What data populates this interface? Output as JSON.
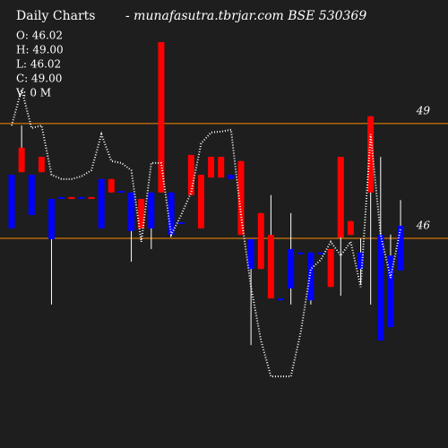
{
  "chart_data": {
    "type": "candlestick",
    "title": "Daily Charts",
    "subtitle": "-  munafasutra.tbrjar.com  BSE 530369",
    "info": [
      "O: 46.02",
      "H: 49.00",
      "L: 46.02",
      "C: 49.00",
      "V: 0  M"
    ],
    "open": [
      47.66,
      47.73,
      47.66,
      47.73,
      47.03,
      47.08,
      47.03,
      47.08,
      47.03,
      47.55,
      47.2,
      47.24,
      47.2,
      46.26,
      47.2,
      47.2,
      47.2,
      46.42,
      47.13,
      46.26,
      47.59,
      47.59,
      47.66,
      46.09,
      45.98,
      45.2,
      44.43,
      44.43,
      45.72,
      45.63,
      45.63,
      45.63,
      44.73,
      46.02,
      46.09,
      45.63,
      47.2,
      46.09,
      45.55,
      46.33
    ],
    "high": [
      47.66,
      48.95,
      47.66,
      48.13,
      47.03,
      47.08,
      47.08,
      47.08,
      47.08,
      47.55,
      47.55,
      47.24,
      47.2,
      47.03,
      47.2,
      51.13,
      47.2,
      46.42,
      48.18,
      47.66,
      48.13,
      48.13,
      47.66,
      48.02,
      45.98,
      46.66,
      47.13,
      44.43,
      46.66,
      45.63,
      45.63,
      45.63,
      45.72,
      48.13,
      46.45,
      46.0,
      49.19,
      48.13,
      46.1,
      47.0
    ],
    "low": [
      46.26,
      47.73,
      46.61,
      47.73,
      44.27,
      47.03,
      47.03,
      47.03,
      47.03,
      46.26,
      47.2,
      47.2,
      45.39,
      46.26,
      45.72,
      47.2,
      46.09,
      46.38,
      47.13,
      46.26,
      47.59,
      47.59,
      47.55,
      46.09,
      43.21,
      45.2,
      44.43,
      44.38,
      44.27,
      45.59,
      44.27,
      45.59,
      44.73,
      44.5,
      46.09,
      44.8,
      44.27,
      43.33,
      43.68,
      45.16
    ],
    "close": [
      46.26,
      48.37,
      46.61,
      48.13,
      45.98,
      47.03,
      47.08,
      47.03,
      47.08,
      46.26,
      47.55,
      47.2,
      46.19,
      47.03,
      46.26,
      51.13,
      46.09,
      46.38,
      48.18,
      47.66,
      48.13,
      48.13,
      47.55,
      48.02,
      45.2,
      46.66,
      46.09,
      44.38,
      44.69,
      45.59,
      44.38,
      45.59,
      45.72,
      48.13,
      46.45,
      45.2,
      49.19,
      43.33,
      43.68,
      45.16
    ],
    "up_color": "#ff0000",
    "down_color": "#0000ff",
    "line": {
      "color": "#ffffff",
      "values": [
        48.95,
        49.89,
        48.88,
        48.95,
        47.66,
        47.55,
        47.55,
        47.62,
        47.78,
        48.72,
        48.02,
        47.97,
        47.78,
        45.91,
        47.97,
        47.97,
        46.09,
        46.61,
        47.2,
        48.48,
        48.77,
        48.79,
        48.84,
        46.61,
        44.73,
        43.33,
        42.39,
        42.39,
        42.39,
        43.56,
        45.2,
        45.44,
        45.91,
        45.55,
        45.91,
        44.73,
        48.72,
        46.09,
        44.97,
        46.26
      ]
    },
    "ylim": [
      40.52,
      52.23
    ],
    "yticks": [
      46,
      49
    ],
    "tick_color": "#ff8c00"
  }
}
